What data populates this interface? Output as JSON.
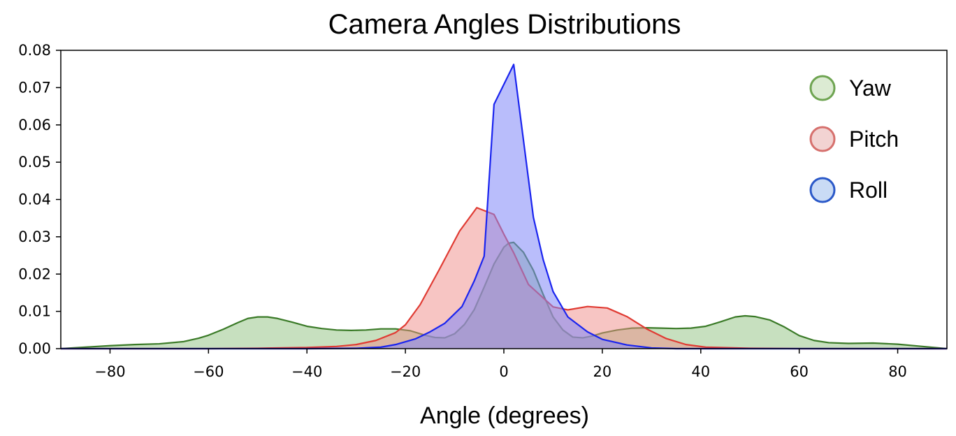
{
  "chart_data": {
    "type": "area",
    "title": "Camera Angles Distributions",
    "xlabel": "Angle (degrees)",
    "ylabel": "",
    "xlim": [
      -90,
      90
    ],
    "ylim": [
      0,
      0.08
    ],
    "x_ticks": [
      -80,
      -60,
      -40,
      -20,
      0,
      20,
      40,
      60,
      80
    ],
    "x_tick_labels": [
      "−80",
      "−60",
      "−40",
      "−20",
      "0",
      "20",
      "40",
      "60",
      "80"
    ],
    "y_ticks": [
      0,
      0.01,
      0.02,
      0.03,
      0.04,
      0.05,
      0.06,
      0.07,
      0.08
    ],
    "y_tick_labels": [
      "0.00",
      "0.01",
      "0.02",
      "0.03",
      "0.04",
      "0.05",
      "0.06",
      "0.07",
      "0.08"
    ],
    "grid": false,
    "legend_position": "top-right",
    "series": [
      {
        "name": "Yaw",
        "line_color": "#3a7a27",
        "fill_color": "#8fc27f",
        "fill_opacity": 0.5,
        "legend_edge": "#6ea451",
        "legend_fill": "#dcebd3",
        "points": [
          [
            -90,
            0.0
          ],
          [
            -85,
            0.0004
          ],
          [
            -80,
            0.0008
          ],
          [
            -75,
            0.0011
          ],
          [
            -70,
            0.0013
          ],
          [
            -65,
            0.0019
          ],
          [
            -62,
            0.0028
          ],
          [
            -60,
            0.0036
          ],
          [
            -57,
            0.0052
          ],
          [
            -54,
            0.007
          ],
          [
            -52,
            0.0081
          ],
          [
            -50,
            0.0085
          ],
          [
            -48,
            0.0085
          ],
          [
            -46,
            0.0081
          ],
          [
            -43,
            0.0071
          ],
          [
            -40,
            0.006
          ],
          [
            -37,
            0.0054
          ],
          [
            -34,
            0.005
          ],
          [
            -31,
            0.0049
          ],
          [
            -28,
            0.005
          ],
          [
            -25,
            0.0053
          ],
          [
            -22,
            0.0053
          ],
          [
            -19,
            0.0048
          ],
          [
            -16,
            0.0036
          ],
          [
            -14,
            0.003
          ],
          [
            -12,
            0.0029
          ],
          [
            -10,
            0.004
          ],
          [
            -8,
            0.0065
          ],
          [
            -6,
            0.0105
          ],
          [
            -4,
            0.0165
          ],
          [
            -2,
            0.0227
          ],
          [
            0,
            0.0272
          ],
          [
            1,
            0.0283
          ],
          [
            2,
            0.0285
          ],
          [
            4,
            0.0258
          ],
          [
            6,
            0.021
          ],
          [
            8,
            0.0145
          ],
          [
            10,
            0.0085
          ],
          [
            12,
            0.005
          ],
          [
            14,
            0.0031
          ],
          [
            16,
            0.0029
          ],
          [
            18,
            0.0034
          ],
          [
            20,
            0.0042
          ],
          [
            23,
            0.005
          ],
          [
            26,
            0.0055
          ],
          [
            29,
            0.0056
          ],
          [
            32,
            0.0055
          ],
          [
            35,
            0.0054
          ],
          [
            38,
            0.0055
          ],
          [
            41,
            0.006
          ],
          [
            44,
            0.0072
          ],
          [
            47,
            0.0085
          ],
          [
            49,
            0.0088
          ],
          [
            51,
            0.0086
          ],
          [
            54,
            0.0077
          ],
          [
            57,
            0.0058
          ],
          [
            60,
            0.0035
          ],
          [
            63,
            0.0022
          ],
          [
            66,
            0.0016
          ],
          [
            70,
            0.0014
          ],
          [
            75,
            0.0015
          ],
          [
            80,
            0.0012
          ],
          [
            85,
            0.0006
          ],
          [
            90,
            0.0
          ]
        ]
      },
      {
        "name": "Pitch",
        "line_color": "#e03b33",
        "fill_color": "#f08c88",
        "fill_opacity": 0.5,
        "legend_edge": "#d6706d",
        "legend_fill": "#f2d3d2",
        "points": [
          [
            -90,
            0.0
          ],
          [
            -60,
            0.0
          ],
          [
            -50,
            0.0001
          ],
          [
            -40,
            0.0003
          ],
          [
            -34,
            0.0006
          ],
          [
            -30,
            0.0011
          ],
          [
            -26,
            0.0022
          ],
          [
            -22,
            0.0043
          ],
          [
            -20,
            0.0064
          ],
          [
            -17,
            0.0118
          ],
          [
            -13,
            0.0215
          ],
          [
            -9,
            0.0315
          ],
          [
            -5.5,
            0.0378
          ],
          [
            -2,
            0.036
          ],
          [
            0,
            0.0307
          ],
          [
            2,
            0.0257
          ],
          [
            5,
            0.0172
          ],
          [
            10,
            0.0112
          ],
          [
            13,
            0.0104
          ],
          [
            17,
            0.0113
          ],
          [
            21,
            0.0109
          ],
          [
            25,
            0.0086
          ],
          [
            29,
            0.0053
          ],
          [
            33,
            0.0027
          ],
          [
            37,
            0.0011
          ],
          [
            41,
            0.0004
          ],
          [
            50,
            0.0001
          ],
          [
            60,
            0.0
          ],
          [
            90,
            0.0
          ]
        ]
      },
      {
        "name": "Roll",
        "line_color": "#1a24ef",
        "fill_color": "#7f87f7",
        "fill_opacity": 0.55,
        "legend_edge": "#2a58c8",
        "legend_fill": "#c9dbf5",
        "points": [
          [
            -90,
            0.0
          ],
          [
            -40,
            0.0
          ],
          [
            -30,
            0.0001
          ],
          [
            -25,
            0.0004
          ],
          [
            -22,
            0.0011
          ],
          [
            -18,
            0.0026
          ],
          [
            -15,
            0.0045
          ],
          [
            -12,
            0.0068
          ],
          [
            -8.5,
            0.0113
          ],
          [
            -6,
            0.0182
          ],
          [
            -4,
            0.0248
          ],
          [
            -2,
            0.0655
          ],
          [
            2,
            0.0762
          ],
          [
            6,
            0.0352
          ],
          [
            8,
            0.0238
          ],
          [
            10,
            0.0153
          ],
          [
            13,
            0.0085
          ],
          [
            17,
            0.0045
          ],
          [
            20,
            0.0025
          ],
          [
            25,
            0.001
          ],
          [
            30,
            0.0002
          ],
          [
            35,
            0.0
          ],
          [
            90,
            0.0
          ]
        ]
      }
    ]
  }
}
